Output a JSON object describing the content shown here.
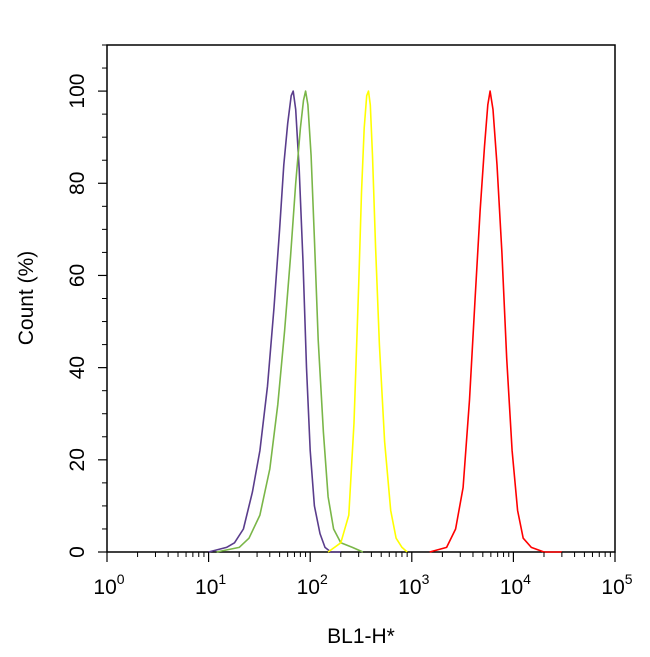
{
  "chart_data": {
    "type": "line",
    "xlabel": "BL1-H*",
    "ylabel": "Count (%)",
    "x_scale": "log",
    "xlim": [
      1,
      100000
    ],
    "ylim": [
      0,
      110
    ],
    "x_ticks": [
      {
        "base": "10",
        "exp": "0"
      },
      {
        "base": "10",
        "exp": "1"
      },
      {
        "base": "10",
        "exp": "2"
      },
      {
        "base": "10",
        "exp": "3"
      },
      {
        "base": "10",
        "exp": "4"
      },
      {
        "base": "10",
        "exp": "5"
      }
    ],
    "y_ticks": [
      "0",
      "20",
      "40",
      "60",
      "80",
      "100"
    ],
    "grid": false,
    "legend": "none",
    "series": [
      {
        "color": "#5a3d8c",
        "x": [
          10,
          15,
          18,
          22,
          27,
          32,
          38,
          44,
          50,
          55,
          60,
          65,
          68,
          72,
          78,
          85,
          92,
          100,
          110,
          125,
          140,
          160,
          200
        ],
        "y": [
          0,
          1,
          2,
          5,
          13,
          22,
          36,
          53,
          70,
          84,
          93,
          99,
          100,
          96,
          83,
          63,
          40,
          22,
          10,
          4,
          1,
          0,
          0
        ]
      },
      {
        "color": "#7ab648",
        "x": [
          12,
          20,
          25,
          32,
          40,
          48,
          56,
          64,
          72,
          80,
          86,
          90,
          95,
          102,
          110,
          120,
          135,
          150,
          170,
          200,
          260,
          330
        ],
        "y": [
          0,
          1,
          3,
          8,
          18,
          32,
          48,
          64,
          80,
          92,
          98,
          100,
          97,
          86,
          68,
          46,
          26,
          12,
          5,
          2,
          1,
          0
        ]
      },
      {
        "color": "#ffff00",
        "x": [
          150,
          200,
          240,
          270,
          300,
          320,
          340,
          360,
          375,
          390,
          410,
          440,
          480,
          540,
          620,
          700,
          800,
          900
        ],
        "y": [
          0,
          2,
          8,
          28,
          58,
          78,
          92,
          99,
          100,
          97,
          86,
          66,
          45,
          24,
          9,
          3,
          1,
          0
        ]
      },
      {
        "color": "#ff0000",
        "x": [
          1500,
          2200,
          2700,
          3200,
          3700,
          4200,
          4700,
          5200,
          5600,
          5900,
          6300,
          6900,
          7700,
          8600,
          9700,
          11000,
          12500,
          15000,
          20000,
          30000
        ],
        "y": [
          0,
          1,
          5,
          14,
          33,
          55,
          74,
          88,
          97,
          100,
          96,
          84,
          65,
          42,
          22,
          9,
          3,
          1,
          0,
          0
        ]
      }
    ]
  }
}
